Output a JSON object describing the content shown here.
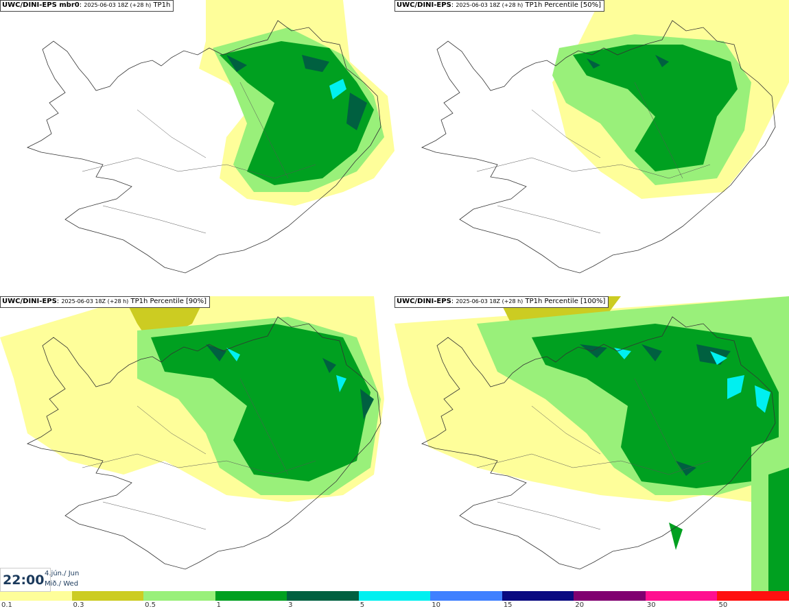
{
  "panels": [
    {
      "model": "UWC/DINI-EPS mbr0",
      "run": "2025-06-03 18Z (+28 h)",
      "field": "TP1h"
    },
    {
      "model": "UWC/DINI-EPS",
      "run": "2025-06-03 18Z (+28 h)",
      "field": "TP1h Percentile [50%]"
    },
    {
      "model": "UWC/DINI-EPS",
      "run": "2025-06-03 18Z (+28 h)",
      "field": "TP1h Percentile [90%]"
    },
    {
      "model": "UWC/DINI-EPS",
      "run": "2025-06-03 18Z (+28 h)",
      "field": "TP1h Percentile [100%]"
    }
  ],
  "valid_time": {
    "time": "22:00",
    "date": "4.jún./ Jun",
    "day": "Mið./ Wed"
  },
  "legend": {
    "ticks": [
      "0.1",
      "0.3",
      "0.5",
      "1",
      "3",
      "5",
      "10",
      "15",
      "20",
      "30",
      "50"
    ],
    "colors": [
      "#fefe9a",
      "#cccc22",
      "#99f07a",
      "#00a020",
      "#006040",
      "#00f0f0",
      "#4080ff",
      "#0a0a80",
      "#800070",
      "#ff1090",
      "#ff1010"
    ]
  },
  "colors": {
    "coast": "#333333",
    "title_border": "#444444",
    "time_text": "#1b3a5c"
  }
}
